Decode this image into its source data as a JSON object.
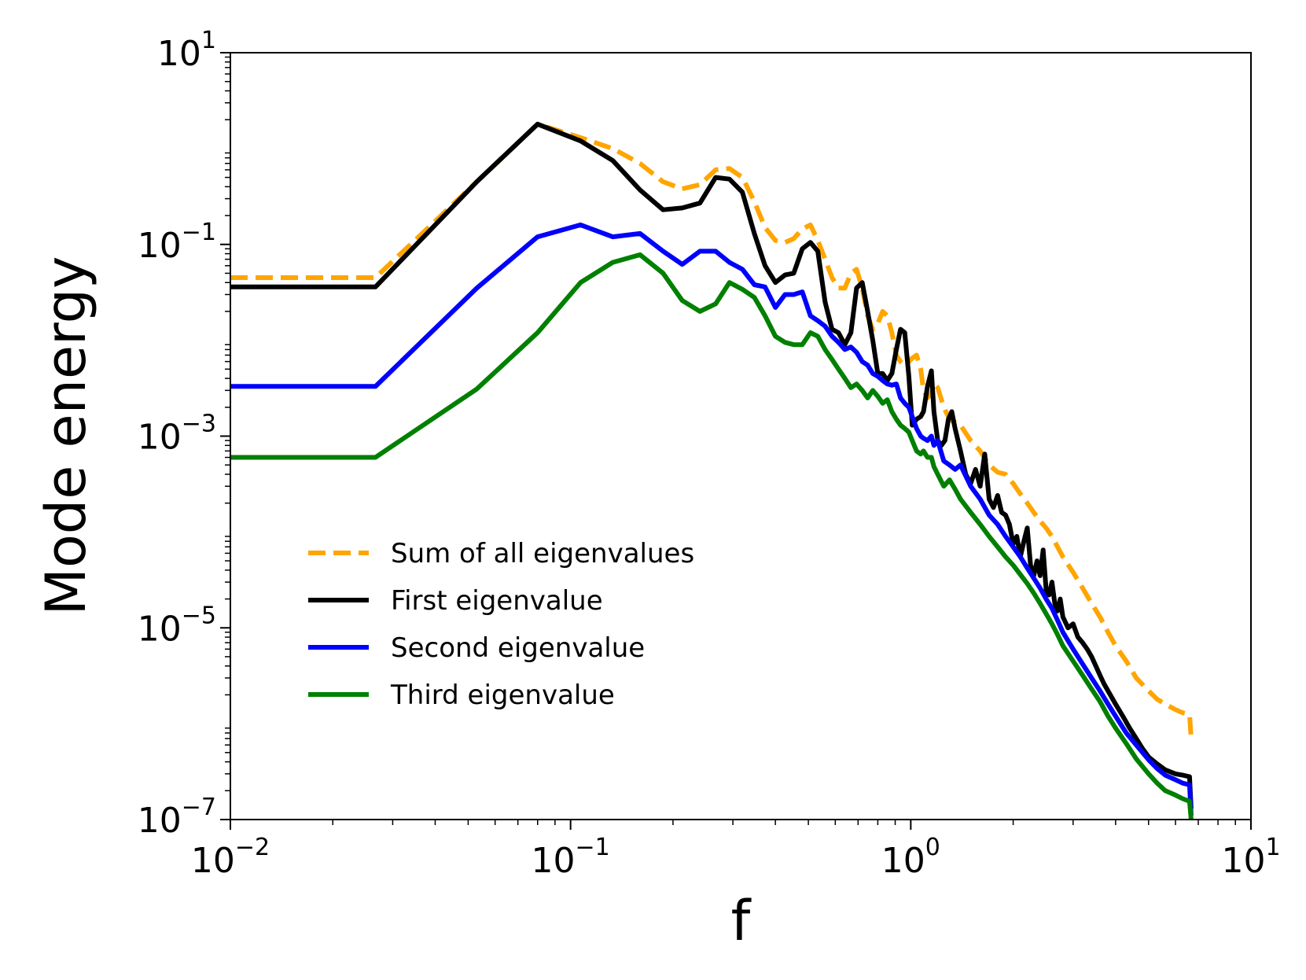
{
  "chart_data": {
    "type": "line",
    "title": "",
    "xlabel": "f",
    "ylabel": "Mode energy",
    "xscale": "log",
    "yscale": "log",
    "xlim": [
      0.01,
      10
    ],
    "ylim": [
      1e-07,
      10
    ],
    "grid": false,
    "legend_position": "lower-left",
    "x_tick_labels": [
      {
        "value": 0.01,
        "base": "10",
        "exp": "−2"
      },
      {
        "value": 0.1,
        "base": "10",
        "exp": "−1"
      },
      {
        "value": 1,
        "base": "10",
        "exp": "0"
      },
      {
        "value": 10,
        "base": "10",
        "exp": "1"
      }
    ],
    "y_tick_labels": [
      {
        "value": 10,
        "base": "10",
        "exp": "1"
      },
      {
        "value": 0.1,
        "base": "10",
        "exp": "−1"
      },
      {
        "value": 0.001,
        "base": "10",
        "exp": "−3"
      },
      {
        "value": 1e-05,
        "base": "10",
        "exp": "−5"
      },
      {
        "value": 1e-07,
        "base": "10",
        "exp": "−7"
      }
    ],
    "series": [
      {
        "name": "Sum of all eigenvalues",
        "color": "#FFA500",
        "dash": true,
        "x": [
          0.01,
          0.0267,
          0.053,
          0.08,
          0.107,
          0.133,
          0.16,
          0.187,
          0.213,
          0.24,
          0.267,
          0.293,
          0.32,
          0.347,
          0.373,
          0.4,
          0.427,
          0.453,
          0.48,
          0.507,
          0.533,
          0.56,
          0.587,
          0.613,
          0.64,
          0.667,
          0.693,
          0.72,
          0.747,
          0.773,
          0.8,
          0.827,
          0.853,
          0.88,
          0.907,
          0.933,
          0.96,
          0.987,
          1.01,
          1.04,
          1.07,
          1.09,
          1.12,
          1.15,
          1.17,
          1.2,
          1.25,
          1.3,
          1.35,
          1.4,
          1.5,
          1.6,
          1.7,
          1.8,
          1.9,
          2.0,
          2.1,
          2.2,
          2.3,
          2.4,
          2.5,
          2.6,
          2.7,
          2.8,
          3.0,
          3.2,
          3.4,
          3.6,
          3.8,
          4.0,
          4.3,
          4.6,
          5.0,
          5.3,
          5.6,
          6.0,
          6.3,
          6.6,
          6.67
        ],
        "values": [
          0.045,
          0.045,
          0.45,
          1.8,
          1.3,
          1.0,
          0.7,
          0.45,
          0.38,
          0.42,
          0.6,
          0.62,
          0.5,
          0.28,
          0.15,
          0.11,
          0.105,
          0.115,
          0.145,
          0.16,
          0.11,
          0.07,
          0.045,
          0.035,
          0.035,
          0.05,
          0.055,
          0.035,
          0.018,
          0.013,
          0.015,
          0.02,
          0.018,
          0.012,
          0.007,
          0.006,
          0.0055,
          0.006,
          0.0065,
          0.007,
          0.005,
          0.003,
          0.0025,
          0.0028,
          0.0035,
          0.0032,
          0.002,
          0.0015,
          0.0014,
          0.0013,
          0.0009,
          0.0007,
          0.0005,
          0.00042,
          0.0004,
          0.00032,
          0.00025,
          0.0002,
          0.00016,
          0.00013,
          0.00011,
          9e-05,
          7e-05,
          5.5e-05,
          3.8e-05,
          2.6e-05,
          1.8e-05,
          1.3e-05,
          9e-06,
          6.5e-06,
          4.5e-06,
          3e-06,
          2.2e-06,
          1.8e-06,
          1.6e-06,
          1.4e-06,
          1.3e-06,
          1.25e-06,
          7e-07
        ]
      },
      {
        "name": "First eigenvalue",
        "color": "#000000",
        "dash": false,
        "x": [
          0.01,
          0.0267,
          0.053,
          0.08,
          0.107,
          0.133,
          0.16,
          0.187,
          0.213,
          0.24,
          0.267,
          0.293,
          0.32,
          0.347,
          0.373,
          0.4,
          0.427,
          0.453,
          0.48,
          0.507,
          0.533,
          0.56,
          0.587,
          0.613,
          0.64,
          0.667,
          0.693,
          0.72,
          0.747,
          0.773,
          0.8,
          0.827,
          0.853,
          0.88,
          0.907,
          0.933,
          0.96,
          0.987,
          1.01,
          1.04,
          1.07,
          1.09,
          1.12,
          1.15,
          1.17,
          1.2,
          1.23,
          1.26,
          1.29,
          1.32,
          1.35,
          1.4,
          1.45,
          1.5,
          1.55,
          1.6,
          1.65,
          1.7,
          1.75,
          1.8,
          1.85,
          1.9,
          1.95,
          2.0,
          2.05,
          2.1,
          2.15,
          2.2,
          2.25,
          2.3,
          2.35,
          2.4,
          2.45,
          2.5,
          2.55,
          2.6,
          2.65,
          2.7,
          2.75,
          2.8,
          2.9,
          3.0,
          3.1,
          3.2,
          3.3,
          3.4,
          3.5,
          3.6,
          3.7,
          3.8,
          4.0,
          4.2,
          4.4,
          4.6,
          4.8,
          5.0,
          5.3,
          5.6,
          6.0,
          6.3,
          6.6,
          6.67
        ],
        "values": [
          0.036,
          0.036,
          0.45,
          1.8,
          1.2,
          0.75,
          0.37,
          0.23,
          0.24,
          0.27,
          0.5,
          0.48,
          0.35,
          0.13,
          0.06,
          0.04,
          0.048,
          0.05,
          0.09,
          0.105,
          0.085,
          0.025,
          0.013,
          0.012,
          0.009,
          0.012,
          0.035,
          0.04,
          0.02,
          0.01,
          0.0045,
          0.0045,
          0.0038,
          0.0045,
          0.008,
          0.013,
          0.012,
          0.0042,
          0.0013,
          0.0015,
          0.0016,
          0.0018,
          0.0033,
          0.0048,
          0.0018,
          0.0009,
          0.0008,
          0.0009,
          0.0015,
          0.0018,
          0.0012,
          0.0007,
          0.0004,
          0.00032,
          0.00045,
          0.0003,
          0.00065,
          0.00022,
          0.00018,
          0.00024,
          0.00016,
          0.00015,
          0.00012,
          7.5e-05,
          9e-05,
          5.5e-05,
          8e-05,
          0.00011,
          4.5e-05,
          3.5e-05,
          5e-05,
          3.5e-05,
          6.5e-05,
          2.5e-05,
          2.2e-05,
          3e-05,
          1.8e-05,
          1.5e-05,
          2e-05,
          1.3e-05,
          1e-05,
          1.1e-05,
          8e-06,
          7e-06,
          6e-06,
          5e-06,
          4e-06,
          3.2e-06,
          2.6e-06,
          2.2e-06,
          1.6e-06,
          1.2e-06,
          9e-07,
          7e-07,
          5.5e-07,
          4.5e-07,
          3.8e-07,
          3.3e-07,
          3e-07,
          2.9e-07,
          2.8e-07,
          1.3e-07
        ]
      },
      {
        "name": "Second eigenvalue",
        "color": "#0000FF",
        "dash": false,
        "x": [
          0.01,
          0.0267,
          0.053,
          0.08,
          0.107,
          0.133,
          0.16,
          0.187,
          0.213,
          0.24,
          0.267,
          0.293,
          0.32,
          0.347,
          0.373,
          0.4,
          0.427,
          0.453,
          0.48,
          0.507,
          0.533,
          0.56,
          0.587,
          0.613,
          0.64,
          0.667,
          0.693,
          0.72,
          0.747,
          0.773,
          0.8,
          0.827,
          0.853,
          0.88,
          0.907,
          0.933,
          0.96,
          0.987,
          1.01,
          1.04,
          1.07,
          1.09,
          1.12,
          1.15,
          1.17,
          1.2,
          1.25,
          1.3,
          1.35,
          1.4,
          1.5,
          1.6,
          1.7,
          1.8,
          1.9,
          2.0,
          2.1,
          2.2,
          2.3,
          2.4,
          2.5,
          2.6,
          2.7,
          2.8,
          3.0,
          3.2,
          3.4,
          3.6,
          3.8,
          4.0,
          4.3,
          4.6,
          5.0,
          5.3,
          5.6,
          6.0,
          6.3,
          6.6,
          6.67
        ],
        "values": [
          0.0033,
          0.0033,
          0.035,
          0.12,
          0.16,
          0.12,
          0.13,
          0.085,
          0.062,
          0.085,
          0.085,
          0.065,
          0.055,
          0.038,
          0.036,
          0.022,
          0.03,
          0.03,
          0.032,
          0.018,
          0.016,
          0.014,
          0.011,
          0.0095,
          0.008,
          0.0085,
          0.0075,
          0.006,
          0.0055,
          0.0045,
          0.0042,
          0.0038,
          0.0035,
          0.0034,
          0.0035,
          0.0025,
          0.0022,
          0.002,
          0.0016,
          0.0012,
          0.001,
          0.00095,
          0.0009,
          0.001,
          0.0008,
          0.0009,
          0.00055,
          0.0005,
          0.00045,
          0.0005,
          0.0003,
          0.00022,
          0.00015,
          0.00012,
          9e-05,
          7e-05,
          5.5e-05,
          4.2e-05,
          3.3e-05,
          2.6e-05,
          2e-05,
          1.6e-05,
          1.2e-05,
          9e-06,
          6e-06,
          4.2e-06,
          3e-06,
          2.2e-06,
          1.6e-06,
          1.2e-06,
          8e-07,
          6e-07,
          4.2e-07,
          3.4e-07,
          2.9e-07,
          2.6e-07,
          2.4e-07,
          2.3e-07,
          1.1e-07
        ]
      },
      {
        "name": "Third eigenvalue",
        "color": "#008000",
        "dash": false,
        "x": [
          0.01,
          0.0267,
          0.053,
          0.08,
          0.107,
          0.133,
          0.16,
          0.187,
          0.213,
          0.24,
          0.267,
          0.293,
          0.32,
          0.347,
          0.373,
          0.4,
          0.427,
          0.453,
          0.48,
          0.507,
          0.533,
          0.56,
          0.587,
          0.613,
          0.64,
          0.667,
          0.693,
          0.72,
          0.747,
          0.773,
          0.8,
          0.827,
          0.853,
          0.88,
          0.907,
          0.933,
          0.96,
          0.987,
          1.01,
          1.04,
          1.07,
          1.09,
          1.12,
          1.15,
          1.17,
          1.2,
          1.25,
          1.3,
          1.35,
          1.4,
          1.5,
          1.6,
          1.7,
          1.8,
          1.9,
          2.0,
          2.1,
          2.2,
          2.3,
          2.4,
          2.5,
          2.6,
          2.7,
          2.8,
          3.0,
          3.2,
          3.4,
          3.6,
          3.8,
          4.0,
          4.3,
          4.6,
          5.0,
          5.3,
          5.6,
          6.0,
          6.3,
          6.6,
          6.67
        ],
        "values": [
          0.0006,
          0.0006,
          0.0031,
          0.012,
          0.04,
          0.065,
          0.078,
          0.05,
          0.026,
          0.02,
          0.024,
          0.04,
          0.034,
          0.028,
          0.018,
          0.011,
          0.0095,
          0.009,
          0.009,
          0.012,
          0.011,
          0.008,
          0.0063,
          0.005,
          0.004,
          0.0032,
          0.0035,
          0.003,
          0.0025,
          0.003,
          0.0026,
          0.0022,
          0.0024,
          0.0018,
          0.0015,
          0.0013,
          0.0012,
          0.0011,
          0.0009,
          0.0007,
          0.00065,
          0.0007,
          0.0006,
          0.0006,
          0.00048,
          0.0004,
          0.0003,
          0.00035,
          0.00028,
          0.00022,
          0.00016,
          0.00012,
          9e-05,
          7e-05,
          5.5e-05,
          4.5e-05,
          3.6e-05,
          2.9e-05,
          2.3e-05,
          1.8e-05,
          1.4e-05,
          1.1e-05,
          8.5e-06,
          6.5e-06,
          4.5e-06,
          3.2e-06,
          2.3e-06,
          1.7e-06,
          1.2e-06,
          9e-07,
          6.2e-07,
          4.3e-07,
          3e-07,
          2.4e-07,
          2e-07,
          1.8e-07,
          1.65e-07,
          1.55e-07,
          1e-07
        ]
      }
    ]
  }
}
